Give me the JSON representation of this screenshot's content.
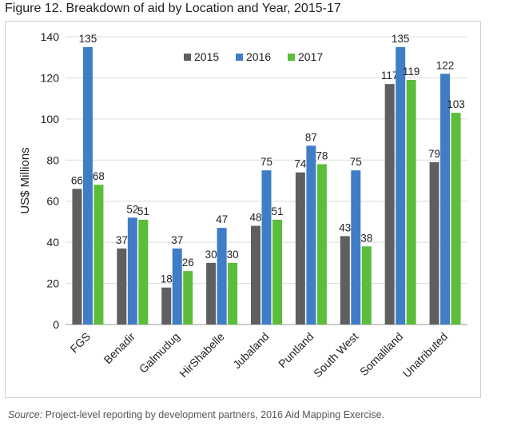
{
  "figure": {
    "title": "Figure 12. Breakdown of aid by Location and Year, 2015-17",
    "source_label": "Source:",
    "source_text": " Project-level reporting by development partners, 2016 Aid Mapping Exercise."
  },
  "chart_data": {
    "type": "bar",
    "title": "Figure 12. Breakdown of aid by Location and Year, 2015-17",
    "xlabel": "",
    "ylabel": "US$ Millions",
    "ylim": [
      0,
      140
    ],
    "yticks": [
      0,
      20,
      40,
      60,
      80,
      100,
      120,
      140
    ],
    "grid": true,
    "legend_position": "top-center",
    "categories": [
      "FGS",
      "Benadir",
      "Galmudug",
      "HirShabelle",
      "Jubaland",
      "Puntland",
      "South West",
      "Somaliland",
      "Unatributed"
    ],
    "series": [
      {
        "name": "2015",
        "color": "#5f5f5f",
        "values": [
          66,
          37,
          18,
          30,
          48,
          74,
          43,
          117,
          79
        ]
      },
      {
        "name": "2016",
        "color": "#3f7dc7",
        "values": [
          135,
          52,
          37,
          47,
          75,
          87,
          75,
          135,
          122
        ]
      },
      {
        "name": "2017",
        "color": "#5cbd3a",
        "values": [
          68,
          51,
          26,
          30,
          51,
          78,
          38,
          119,
          103
        ]
      }
    ]
  }
}
